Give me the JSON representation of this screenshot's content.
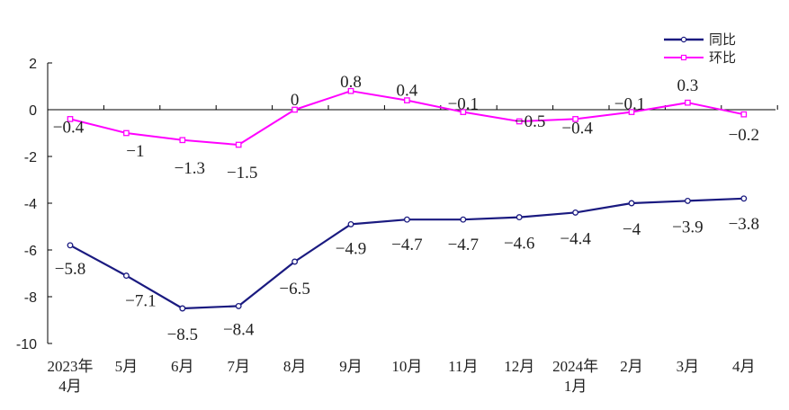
{
  "chart_data": {
    "type": "line",
    "categories": [
      [
        "2023年",
        "4月"
      ],
      [
        "5月"
      ],
      [
        "6月"
      ],
      [
        "7月"
      ],
      [
        "8月"
      ],
      [
        "9月"
      ],
      [
        "10月"
      ],
      [
        "11月"
      ],
      [
        "12月"
      ],
      [
        "2024年",
        "1月"
      ],
      [
        "2月"
      ],
      [
        "3月"
      ],
      [
        "4月"
      ]
    ],
    "yticks": [
      "2",
      "0",
      "-2",
      "-4",
      "-6",
      "-8",
      "-10"
    ],
    "ylim": [
      -10,
      2
    ],
    "grid": false,
    "legend_position": "top-right",
    "series": [
      {
        "name": "同比",
        "color": "#1a1a80",
        "marker": "circle",
        "values": [
          -5.8,
          -7.1,
          -8.5,
          -8.4,
          -6.5,
          -4.9,
          -4.7,
          -4.7,
          -4.6,
          -4.4,
          -4,
          -3.9,
          -3.8
        ],
        "labels": [
          "-5.8",
          "-7.1",
          "-8.5",
          "-8.4",
          "-6.5",
          "-4.9",
          "-4.7",
          "-4.7",
          "-4.6",
          "-4.4",
          "-4",
          "-3.9",
          "-3.8"
        ]
      },
      {
        "name": "环比",
        "color": "#ff00ff",
        "marker": "square",
        "values": [
          -0.4,
          -1,
          -1.3,
          -1.5,
          0,
          0.8,
          0.4,
          -0.1,
          -0.5,
          -0.4,
          -0.1,
          0.3,
          -0.2
        ],
        "labels": [
          "-0.4",
          "-1",
          "-1.3",
          "-1.5",
          "0",
          "0.8",
          "0.4",
          "-0.1",
          "-0.5",
          "-0.4",
          "-0.1",
          "0.3",
          "-0.2"
        ]
      }
    ]
  }
}
